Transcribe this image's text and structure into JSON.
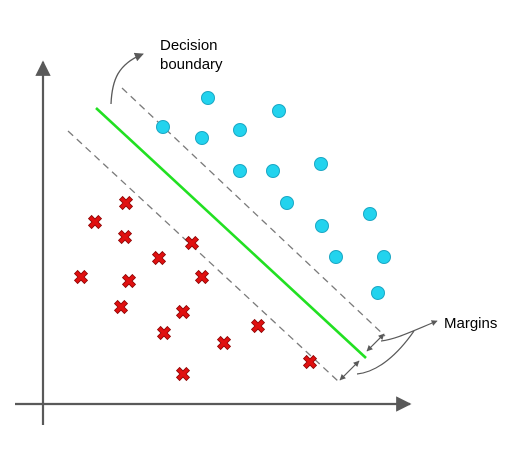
{
  "labels": {
    "decision_line1": "Decision",
    "decision_line2": "boundary",
    "margins": "Margins"
  },
  "colors": {
    "axis": "#595959",
    "boundary": "#22e022",
    "margin": "#7a7a7a",
    "circle_fill": "#22d3ee",
    "circle_stroke": "#1aa7c4",
    "cross_fill": "#e01010",
    "cross_stroke": "#8a0000",
    "arrow": "#595959"
  },
  "classes": [
    {
      "shape": "circle",
      "points": 15
    },
    {
      "shape": "cross",
      "points": 18
    }
  ]
}
